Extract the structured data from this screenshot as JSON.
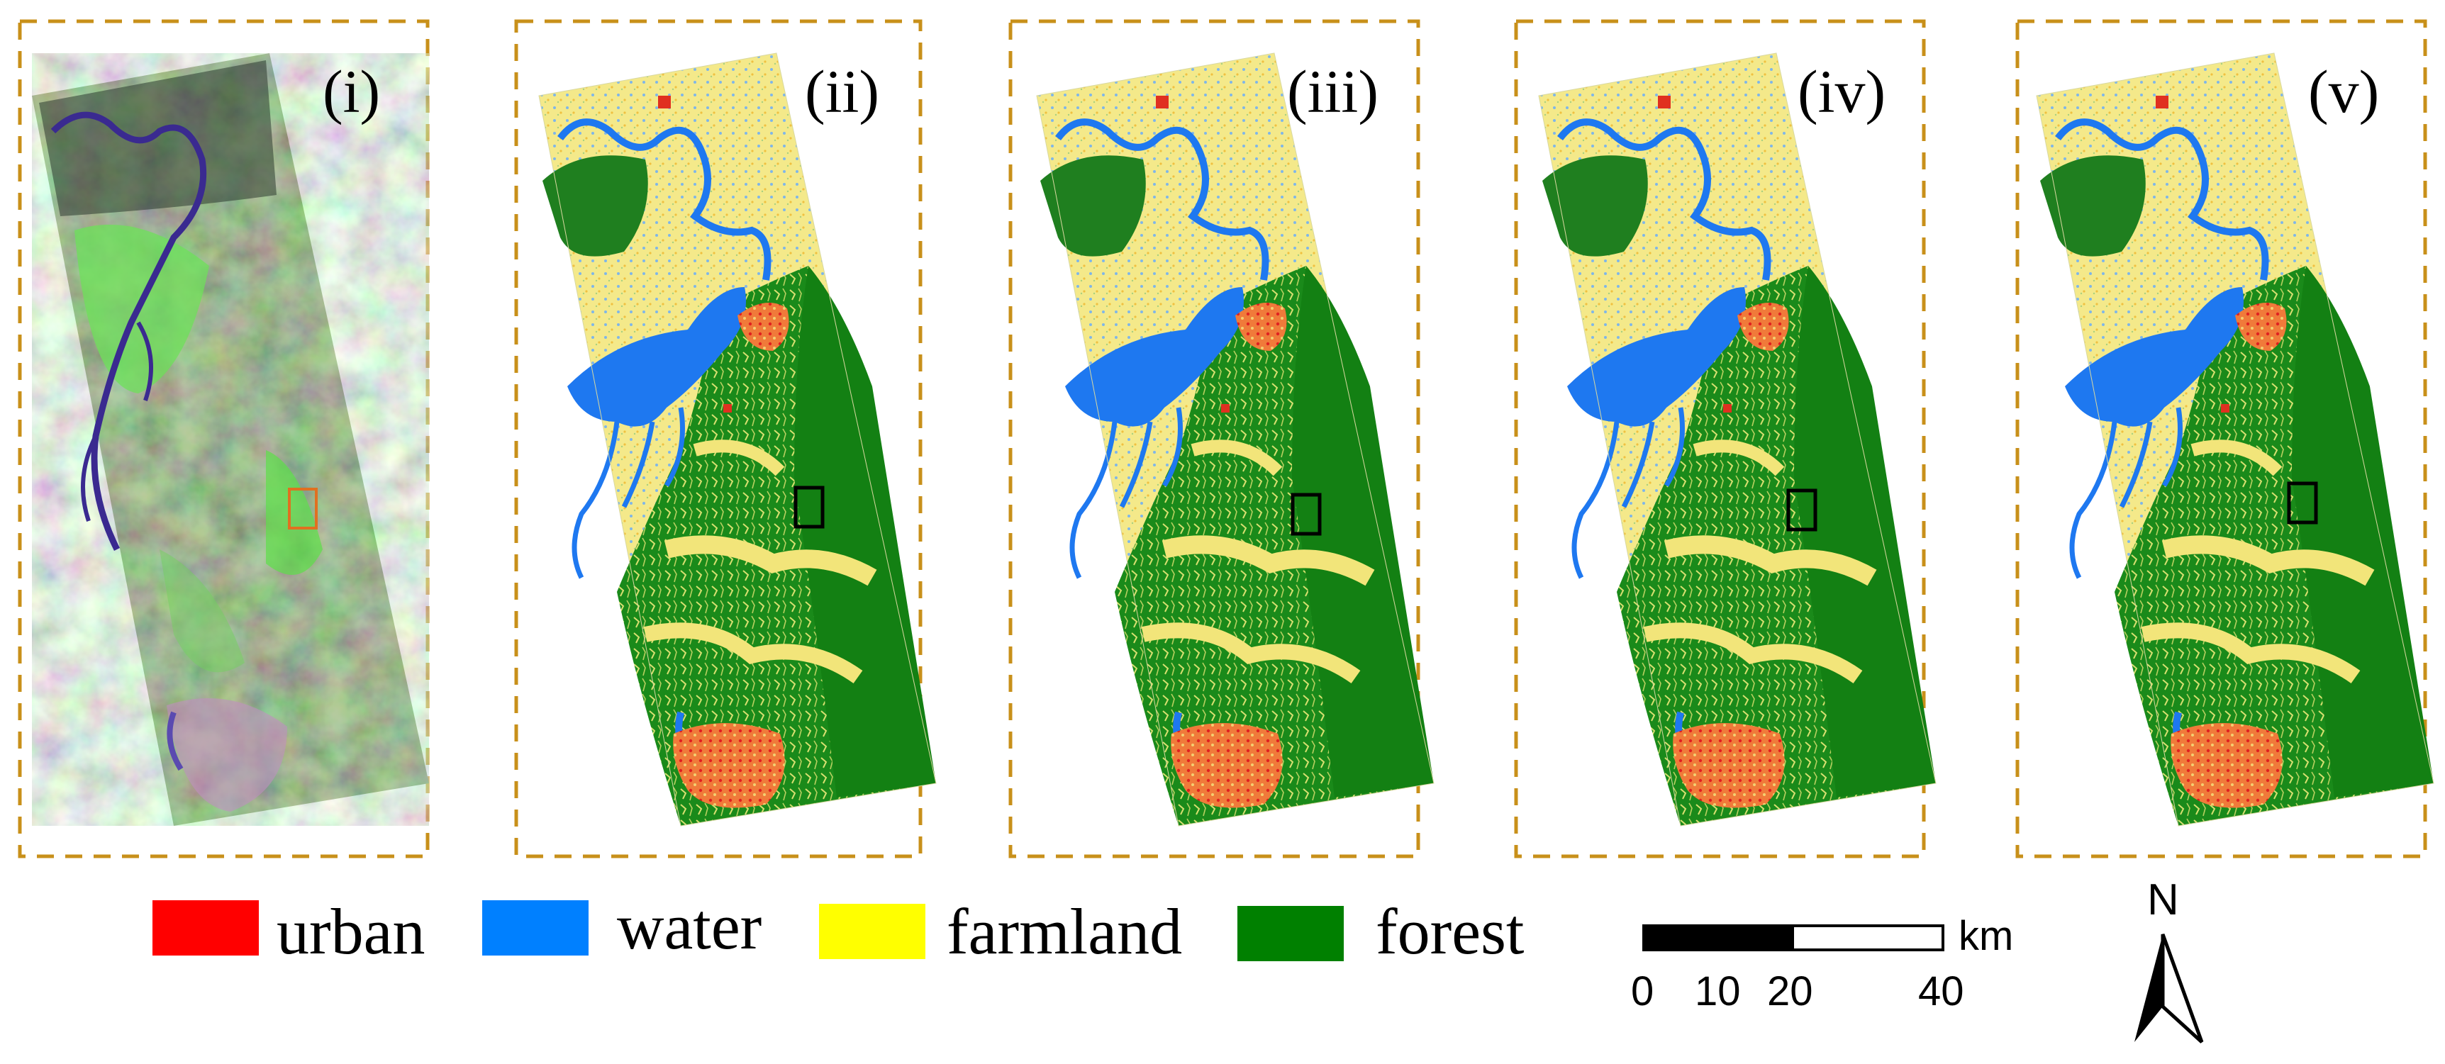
{
  "panels": [
    {
      "label": "(i)",
      "kind": "satellite"
    },
    {
      "label": "(ii)",
      "kind": "classification"
    },
    {
      "label": "(iii)",
      "kind": "classification"
    },
    {
      "label": "(iv)",
      "kind": "classification"
    },
    {
      "label": "(v)",
      "kind": "classification"
    }
  ],
  "legend": [
    {
      "label": "urban",
      "color": "#ff0000"
    },
    {
      "label": "water",
      "color": "#0080ff"
    },
    {
      "label": "farmland",
      "color": "#ffff00"
    },
    {
      "label": "forest",
      "color": "#008000"
    }
  ],
  "scale_bar": {
    "unit": "km",
    "ticks": [
      "0",
      "10",
      "20",
      "40"
    ]
  },
  "north_arrow": {
    "label": "N"
  },
  "colors": {
    "frame": "#c8901a",
    "satellite_base": "#5f7a46",
    "highlight_box_satellite": "#e07020",
    "highlight_box_maps": "#000000"
  }
}
